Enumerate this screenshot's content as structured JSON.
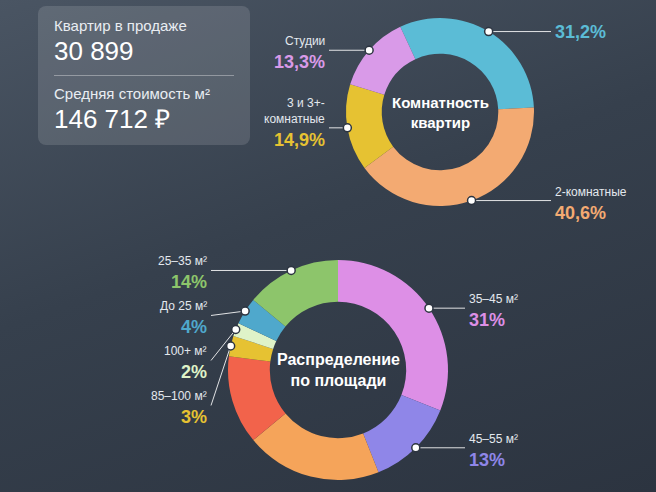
{
  "stats": [
    {
      "label": "Квартир в продаже",
      "value": "30 899"
    },
    {
      "label": "Средняя стоимость м²",
      "value": "146 712 ₽"
    }
  ],
  "chart_data": [
    {
      "type": "donut",
      "title": "Комнатность квартир",
      "categories": [
        null,
        "2-комнатные",
        "3 и 3+-комнатные",
        "Студии"
      ],
      "values": [
        31.2,
        40.6,
        14.9,
        13.3
      ],
      "value_labels": [
        "31,2%",
        "40,6%",
        "14,9%",
        "13,3%"
      ],
      "colors": [
        "#5bbcd6",
        "#f3aa72",
        "#e6c232",
        "#d99ae8"
      ],
      "data_labels": true
    },
    {
      "type": "donut",
      "title": "Распределение по площади",
      "categories": [
        "35–45 м²",
        "45–55 м²",
        null,
        null,
        "85–100 м²",
        "100+ м²",
        "До 25 м²",
        "25–35 м²"
      ],
      "values": [
        31,
        13,
        20,
        13,
        3,
        2,
        4,
        14
      ],
      "value_labels": [
        "31%",
        "13%",
        null,
        null,
        "3%",
        "2%",
        "4%",
        "14%"
      ],
      "colors": [
        "#dd8fe6",
        "#8f86e8",
        "#f5a45a",
        "#f2634b",
        "#e6c232",
        "#dff3c8",
        "#4fa8cc",
        "#8dc56b"
      ],
      "data_labels": true
    }
  ]
}
